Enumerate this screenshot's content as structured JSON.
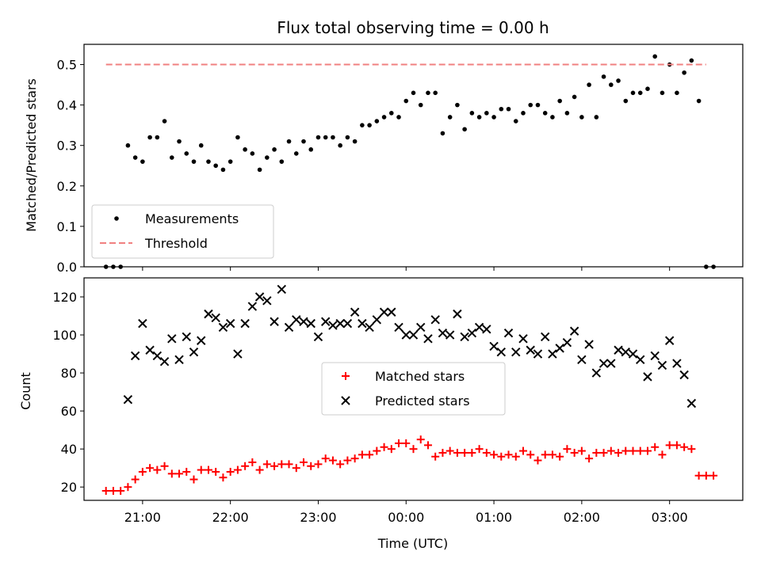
{
  "chart_data": [
    {
      "type": "scatter",
      "title": "Flux total observing time = 0.00 h",
      "xlabel": "",
      "ylabel": "Matched/Predicted stars",
      "xlim": [
        "20:20",
        "03:50"
      ],
      "ylim": [
        0,
        0.55
      ],
      "yticks": [
        "0.0",
        "0.1",
        "0.2",
        "0.3",
        "0.4",
        "0.5"
      ],
      "legend": {
        "placement": "lower-left",
        "entries": [
          "Measurements",
          "Threshold"
        ]
      },
      "series": [
        {
          "name": "Measurements",
          "marker": "dot",
          "color": "#000000",
          "x": [
            "20:35",
            "20:40",
            "20:45",
            "20:50",
            "20:55",
            "21:00",
            "21:05",
            "21:10",
            "21:15",
            "21:20",
            "21:25",
            "21:30",
            "21:35",
            "21:40",
            "21:45",
            "21:50",
            "21:55",
            "22:00",
            "22:05",
            "22:10",
            "22:15",
            "22:20",
            "22:25",
            "22:30",
            "22:35",
            "22:40",
            "22:45",
            "22:50",
            "22:55",
            "23:00",
            "23:05",
            "23:10",
            "23:15",
            "23:20",
            "23:25",
            "23:30",
            "23:35",
            "23:40",
            "23:45",
            "23:50",
            "23:55",
            "00:00",
            "00:05",
            "00:10",
            "00:15",
            "00:20",
            "00:25",
            "00:30",
            "00:35",
            "00:40",
            "00:45",
            "00:50",
            "00:55",
            "01:00",
            "01:05",
            "01:10",
            "01:15",
            "01:20",
            "01:25",
            "01:30",
            "01:35",
            "01:40",
            "01:45",
            "01:50",
            "01:55",
            "02:00",
            "02:05",
            "02:10",
            "02:15",
            "02:20",
            "02:25",
            "02:30",
            "02:35",
            "02:40",
            "02:45",
            "02:50",
            "02:55",
            "03:00",
            "03:05",
            "03:10",
            "03:15",
            "03:20",
            "03:25",
            "03:30"
          ],
          "y": [
            0.0,
            0.0,
            0.0,
            0.3,
            0.27,
            0.26,
            0.32,
            0.32,
            0.36,
            0.27,
            0.31,
            0.28,
            0.26,
            0.3,
            0.26,
            0.25,
            0.24,
            0.26,
            0.32,
            0.29,
            0.28,
            0.24,
            0.27,
            0.29,
            0.26,
            0.31,
            0.28,
            0.31,
            0.29,
            0.32,
            0.32,
            0.32,
            0.3,
            0.32,
            0.31,
            0.35,
            0.35,
            0.36,
            0.37,
            0.38,
            0.37,
            0.41,
            0.43,
            0.4,
            0.43,
            0.43,
            0.33,
            0.37,
            0.4,
            0.34,
            0.38,
            0.37,
            0.38,
            0.37,
            0.39,
            0.39,
            0.36,
            0.38,
            0.4,
            0.4,
            0.38,
            0.37,
            0.41,
            0.38,
            0.42,
            0.37,
            0.45,
            0.37,
            0.47,
            0.45,
            0.46,
            0.41,
            0.43,
            0.43,
            0.44,
            0.52,
            0.43,
            0.5,
            0.43,
            0.48,
            0.51,
            0.41,
            0.0,
            0.0
          ]
        },
        {
          "name": "Threshold",
          "marker": "dashed-line",
          "color": "#f08080",
          "x": [
            "20:35",
            "03:25"
          ],
          "y": [
            0.5,
            0.5
          ]
        }
      ]
    },
    {
      "type": "scatter",
      "title": "",
      "xlabel": "Time (UTC)",
      "ylabel": "Count",
      "xlim": [
        "20:20",
        "03:50"
      ],
      "ylim": [
        13,
        130
      ],
      "yticks": [
        "20",
        "40",
        "60",
        "80",
        "100",
        "120"
      ],
      "xticks": [
        "21:00",
        "22:00",
        "23:00",
        "00:00",
        "01:00",
        "02:00",
        "03:00"
      ],
      "legend": {
        "placement": "center",
        "entries": [
          "Matched stars",
          "Predicted stars"
        ]
      },
      "series": [
        {
          "name": "Matched stars",
          "marker": "plus",
          "color": "#ff0000",
          "x": [
            "20:35",
            "20:40",
            "20:45",
            "20:50",
            "20:55",
            "21:00",
            "21:05",
            "21:10",
            "21:15",
            "21:20",
            "21:25",
            "21:30",
            "21:35",
            "21:40",
            "21:45",
            "21:50",
            "21:55",
            "22:00",
            "22:05",
            "22:10",
            "22:15",
            "22:20",
            "22:25",
            "22:30",
            "22:35",
            "22:40",
            "22:45",
            "22:50",
            "22:55",
            "23:00",
            "23:05",
            "23:10",
            "23:15",
            "23:20",
            "23:25",
            "23:30",
            "23:35",
            "23:40",
            "23:45",
            "23:50",
            "23:55",
            "00:00",
            "00:05",
            "00:10",
            "00:15",
            "00:20",
            "00:25",
            "00:30",
            "00:35",
            "00:40",
            "00:45",
            "00:50",
            "00:55",
            "01:00",
            "01:05",
            "01:10",
            "01:15",
            "01:20",
            "01:25",
            "01:30",
            "01:35",
            "01:40",
            "01:45",
            "01:50",
            "01:55",
            "02:00",
            "02:05",
            "02:10",
            "02:15",
            "02:20",
            "02:25",
            "02:30",
            "02:35",
            "02:40",
            "02:45",
            "02:50",
            "02:55",
            "03:00",
            "03:05",
            "03:10",
            "03:15",
            "03:20",
            "03:25",
            "03:30"
          ],
          "y": [
            18,
            18,
            18,
            20,
            24,
            28,
            30,
            29,
            31,
            27,
            27,
            28,
            24,
            29,
            29,
            28,
            25,
            28,
            29,
            31,
            33,
            29,
            32,
            31,
            32,
            32,
            30,
            33,
            31,
            32,
            35,
            34,
            32,
            34,
            35,
            37,
            37,
            39,
            41,
            40,
            43,
            43,
            40,
            45,
            42,
            36,
            38,
            39,
            38,
            38,
            38,
            40,
            38,
            37,
            36,
            37,
            36,
            39,
            37,
            34,
            37,
            37,
            36,
            40,
            38,
            39,
            35,
            38,
            38,
            39,
            38,
            39,
            39,
            39,
            39,
            41,
            37,
            42,
            42,
            41,
            40,
            26,
            26,
            26
          ]
        },
        {
          "name": "Predicted stars",
          "marker": "cross",
          "color": "#000000",
          "x": [
            "20:50",
            "20:55",
            "21:00",
            "21:05",
            "21:10",
            "21:15",
            "21:20",
            "21:25",
            "21:30",
            "21:35",
            "21:40",
            "21:45",
            "21:50",
            "21:55",
            "22:00",
            "22:05",
            "22:10",
            "22:15",
            "22:20",
            "22:25",
            "22:30",
            "22:35",
            "22:40",
            "22:45",
            "22:50",
            "22:55",
            "23:00",
            "23:05",
            "23:10",
            "23:15",
            "23:20",
            "23:25",
            "23:30",
            "23:35",
            "23:40",
            "23:45",
            "23:50",
            "23:55",
            "00:00",
            "00:05",
            "00:10",
            "00:15",
            "00:20",
            "00:25",
            "00:30",
            "00:35",
            "00:40",
            "00:45",
            "00:50",
            "00:55",
            "01:00",
            "01:05",
            "01:10",
            "01:15",
            "01:20",
            "01:25",
            "01:30",
            "01:35",
            "01:40",
            "01:45",
            "01:50",
            "01:55",
            "02:00",
            "02:05",
            "02:10",
            "02:15",
            "02:20",
            "02:25",
            "02:30",
            "02:35",
            "02:40",
            "02:45",
            "02:50",
            "02:55",
            "03:00",
            "03:05",
            "03:10",
            "03:15"
          ],
          "y": [
            66,
            89,
            106,
            92,
            89,
            86,
            98,
            87,
            99,
            91,
            97,
            111,
            109,
            104,
            106,
            90,
            106,
            115,
            120,
            118,
            107,
            124,
            104,
            108,
            107,
            106,
            99,
            107,
            105,
            106,
            106,
            112,
            106,
            104,
            108,
            112,
            112,
            104,
            100,
            100,
            104,
            98,
            108,
            101,
            100,
            111,
            99,
            101,
            104,
            103,
            94,
            91,
            101,
            91,
            98,
            92,
            90,
            99,
            90,
            93,
            96,
            102,
            87,
            95,
            80,
            85,
            85,
            92,
            91,
            90,
            87,
            78,
            89,
            84,
            97,
            85,
            79,
            64
          ]
        }
      ]
    }
  ]
}
